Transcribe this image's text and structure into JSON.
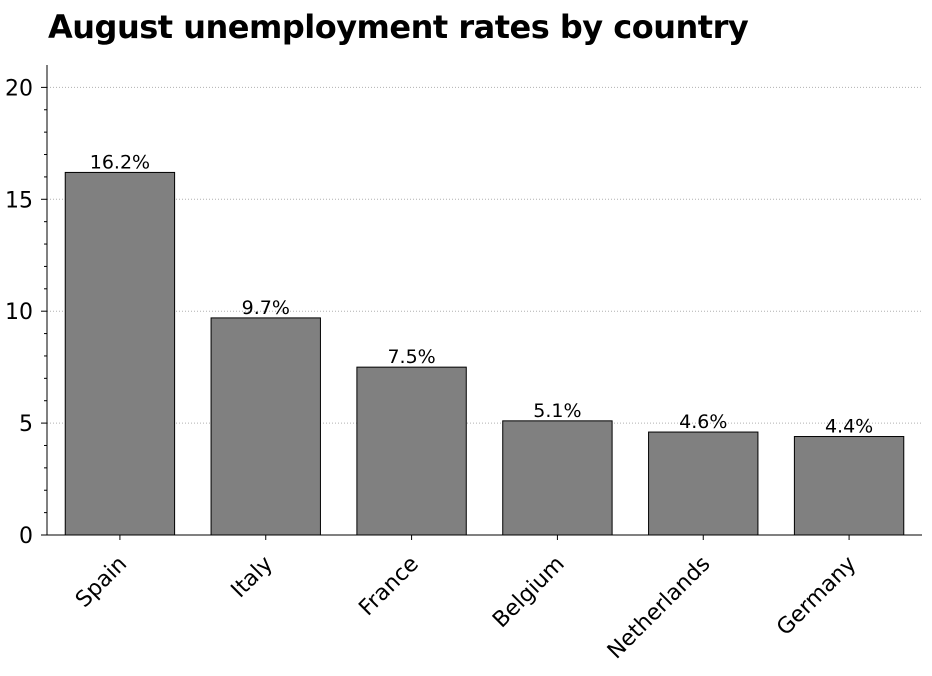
{
  "chart_data": {
    "type": "bar",
    "title": "August unemployment rates by country",
    "xlabel": "",
    "ylabel": "",
    "categories": [
      "Spain",
      "Italy",
      "France",
      "Belgium",
      "Netherlands",
      "Germany"
    ],
    "values": [
      16.2,
      9.7,
      7.5,
      5.1,
      4.6,
      4.4
    ],
    "data_labels": [
      "16.2%",
      "9.7%",
      "7.5%",
      "5.1%",
      "4.6%",
      "4.4%"
    ],
    "ylim": [
      0,
      21
    ],
    "yticks": [
      0,
      5,
      10,
      15,
      20
    ],
    "grid": true,
    "bar_color": "#808080",
    "grid_color": "#b0b0b0"
  }
}
